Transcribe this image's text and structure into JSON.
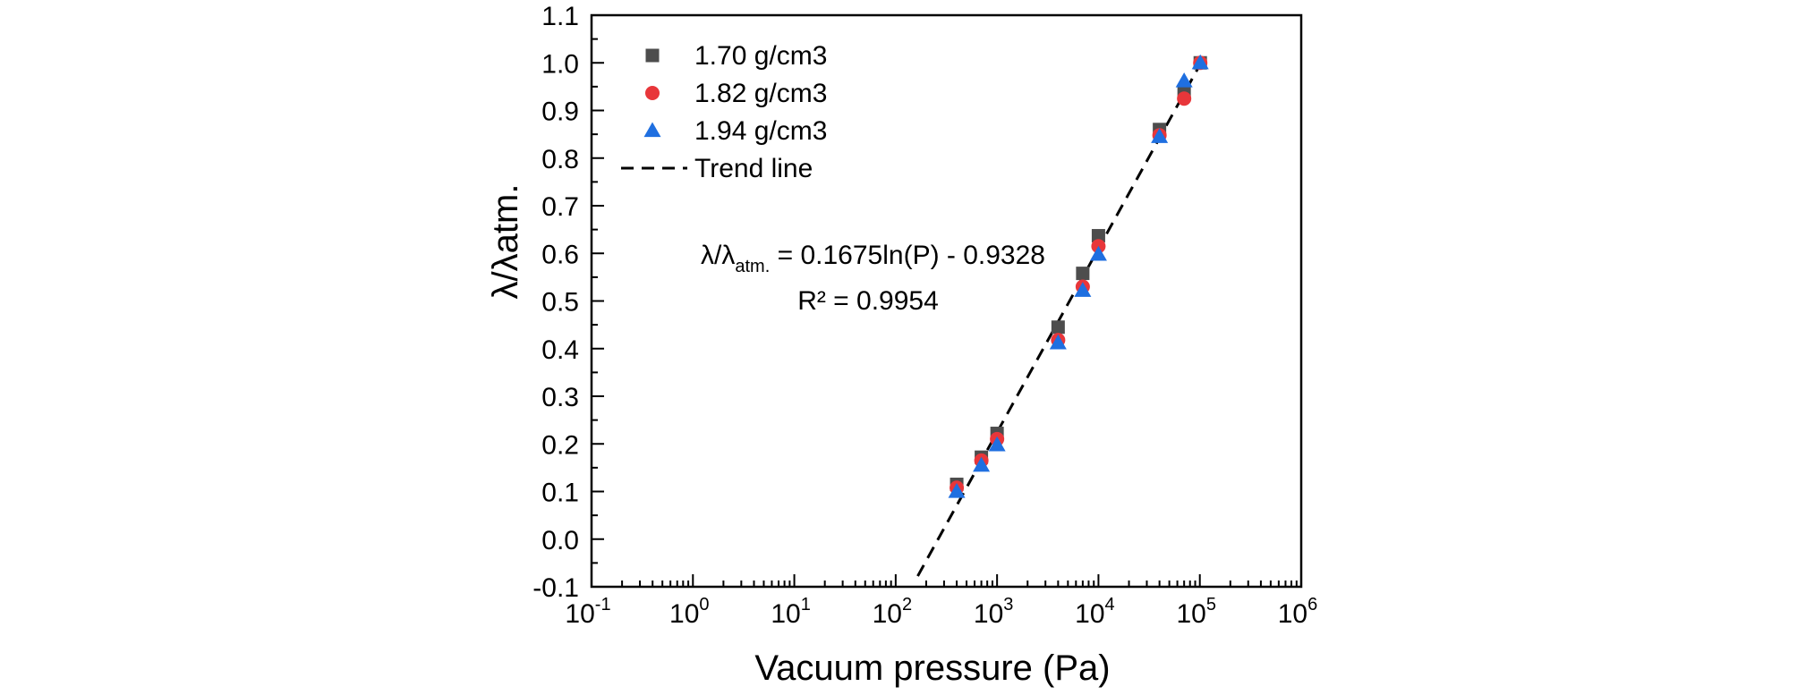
{
  "chart_data": {
    "type": "scatter",
    "xlabel": "Vacuum pressure (Pa)",
    "ylabel": "λ/λatm.",
    "xscale": "log",
    "xlim": [
      0.1,
      1000000
    ],
    "ylim": [
      -0.1,
      1.1
    ],
    "x_tick_base": "10",
    "x_ticks": [
      {
        "value": 0.1,
        "exp": "-1"
      },
      {
        "value": 1,
        "exp": "0"
      },
      {
        "value": 10,
        "exp": "1"
      },
      {
        "value": 100,
        "exp": "2"
      },
      {
        "value": 1000,
        "exp": "3"
      },
      {
        "value": 10000,
        "exp": "4"
      },
      {
        "value": 100000,
        "exp": "5"
      },
      {
        "value": 1000000,
        "exp": "6"
      }
    ],
    "y_ticks": [
      "-0.1",
      "0.0",
      "0.1",
      "0.2",
      "0.3",
      "0.4",
      "0.5",
      "0.6",
      "0.7",
      "0.8",
      "0.9",
      "1.0",
      "1.1"
    ],
    "grid": false,
    "legend_position": "top-left",
    "series": [
      {
        "name": "1.70 g/cm3",
        "marker": "square",
        "color": "#4d4d4d",
        "points": [
          [
            400,
            0.115
          ],
          [
            700,
            0.172
          ],
          [
            1000,
            0.222
          ],
          [
            4000,
            0.445
          ],
          [
            7000,
            0.558
          ],
          [
            10000,
            0.637
          ],
          [
            40000,
            0.86
          ],
          [
            70000,
            0.94
          ],
          [
            101000,
            1.0
          ]
        ]
      },
      {
        "name": "1.82 g/cm3",
        "marker": "circle",
        "color": "#e8363a",
        "points": [
          [
            400,
            0.108
          ],
          [
            700,
            0.165
          ],
          [
            1000,
            0.21
          ],
          [
            4000,
            0.418
          ],
          [
            7000,
            0.53
          ],
          [
            10000,
            0.615
          ],
          [
            40000,
            0.848
          ],
          [
            70000,
            0.925
          ],
          [
            101000,
            1.0
          ]
        ]
      },
      {
        "name": "1.94 g/cm3",
        "marker": "triangle",
        "color": "#1f6fe0",
        "points": [
          [
            400,
            0.1
          ],
          [
            700,
            0.155
          ],
          [
            1000,
            0.198
          ],
          [
            4000,
            0.412
          ],
          [
            7000,
            0.522
          ],
          [
            10000,
            0.598
          ],
          [
            40000,
            0.845
          ],
          [
            70000,
            0.962
          ],
          [
            101000,
            1.0
          ]
        ]
      }
    ],
    "trend_line": {
      "name": "Trend line",
      "color": "#000000",
      "style": "dashed",
      "slope": 0.1675,
      "intercept": -0.9328,
      "x_range": [
        165,
        101000
      ]
    },
    "annotation": {
      "equation_lhs": "λ/λ",
      "equation_sub": "atm.",
      "equation_rhs": " = 0.1675ln(P) - 0.9328",
      "r2": "R² = 0.9954"
    }
  }
}
